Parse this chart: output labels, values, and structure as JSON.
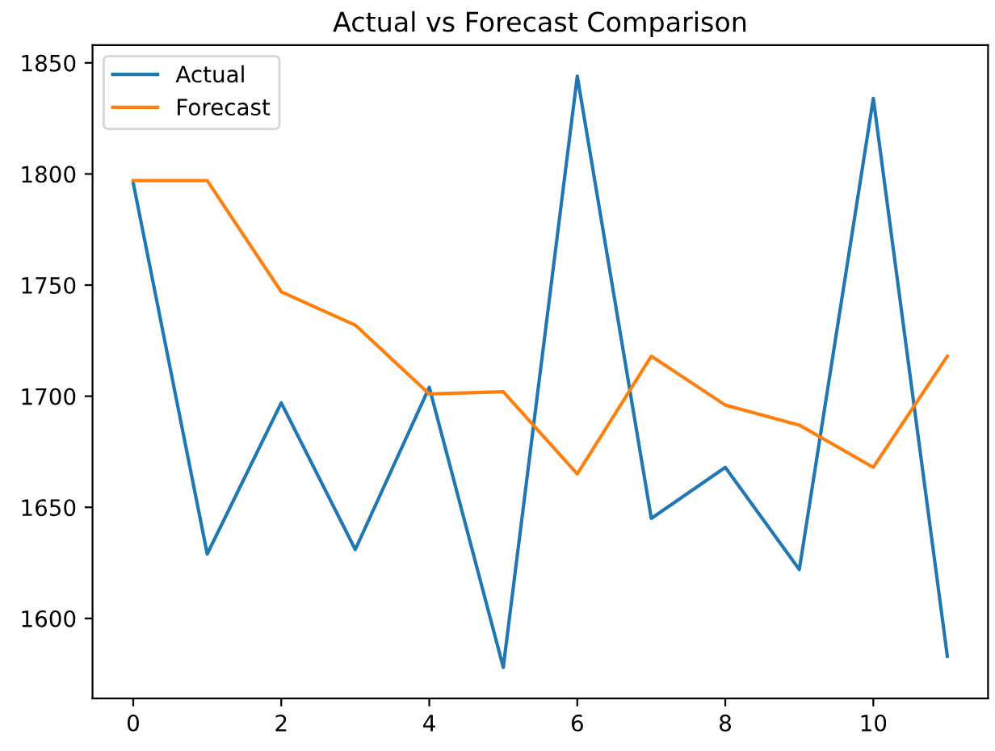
{
  "chart_data": {
    "type": "line",
    "title": "Actual vs Forecast Comparison",
    "x": [
      0,
      1,
      2,
      3,
      4,
      5,
      6,
      7,
      8,
      9,
      10,
      11
    ],
    "series": [
      {
        "name": "Actual",
        "color": "#1f77b4",
        "values": [
          1796,
          1629,
          1697,
          1631,
          1704,
          1578,
          1844,
          1645,
          1668,
          1622,
          1834,
          1583
        ]
      },
      {
        "name": "Forecast",
        "color": "#ff7f0e",
        "values": [
          1797,
          1797,
          1747,
          1732,
          1701,
          1702,
          1665,
          1718,
          1696,
          1687,
          1668,
          1718
        ]
      }
    ],
    "xlim": [
      -0.55,
      11.55
    ],
    "xticks": [
      0,
      2,
      4,
      6,
      8,
      10
    ],
    "ylim": [
      1564,
      1858
    ],
    "yticks": [
      1600,
      1650,
      1700,
      1750,
      1800,
      1850
    ],
    "legend": "top left",
    "grid": false
  }
}
